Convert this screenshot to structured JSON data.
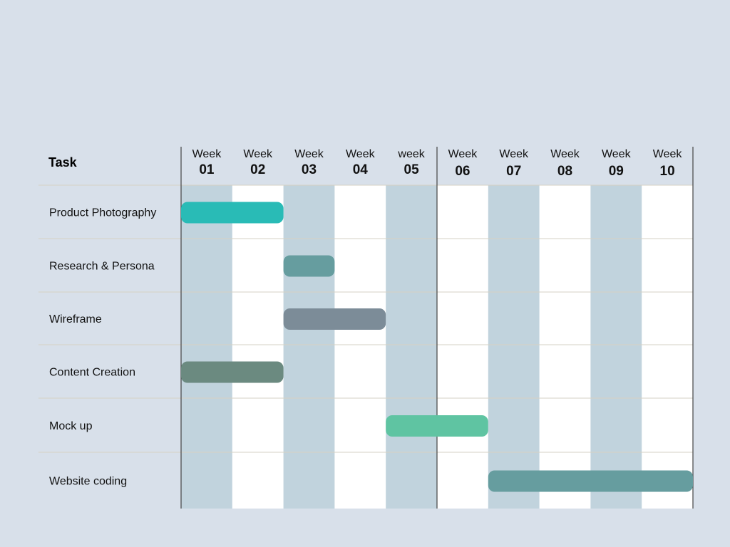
{
  "chart_data": {
    "type": "gantt",
    "task_header": "Task",
    "weeks": [
      {
        "word": "Week",
        "num": "01"
      },
      {
        "word": "Week",
        "num": "02"
      },
      {
        "word": "Week",
        "num": "03"
      },
      {
        "word": "Week",
        "num": "04"
      },
      {
        "word": "week",
        "num": "05"
      },
      {
        "word": "Week",
        "num": "06"
      },
      {
        "word": "Week",
        "num": "07"
      },
      {
        "word": "Week",
        "num": "08"
      },
      {
        "word": "Week",
        "num": "09"
      },
      {
        "word": "Week",
        "num": "10"
      }
    ],
    "tasks": [
      {
        "name": "Product Photography",
        "start_week": 1,
        "end_week": 2,
        "color": "#29bbb6"
      },
      {
        "name": "Research & Persona",
        "start_week": 3,
        "end_week": 3,
        "color": "#669d9f"
      },
      {
        "name": "Wireframe",
        "start_week": 3,
        "end_week": 4,
        "color": "#7c8c98"
      },
      {
        "name": "Content Creation",
        "start_week": 1,
        "end_week": 2,
        "color": "#6b8a80"
      },
      {
        "name": "Mock up",
        "start_week": 5,
        "end_week": 6,
        "color": "#5fc4a2"
      },
      {
        "name": "Website coding",
        "start_week": 7,
        "end_week": 10,
        "color": "#669d9f"
      }
    ],
    "shaded_weeks": [
      1,
      3,
      5,
      7,
      9
    ],
    "colors": {
      "background": "#d8e0ea",
      "shaded_column": "#c1d3dd",
      "plain_column": "#ffffff",
      "row_divider": "#d6d2c4",
      "axis_line": "#444444"
    }
  }
}
